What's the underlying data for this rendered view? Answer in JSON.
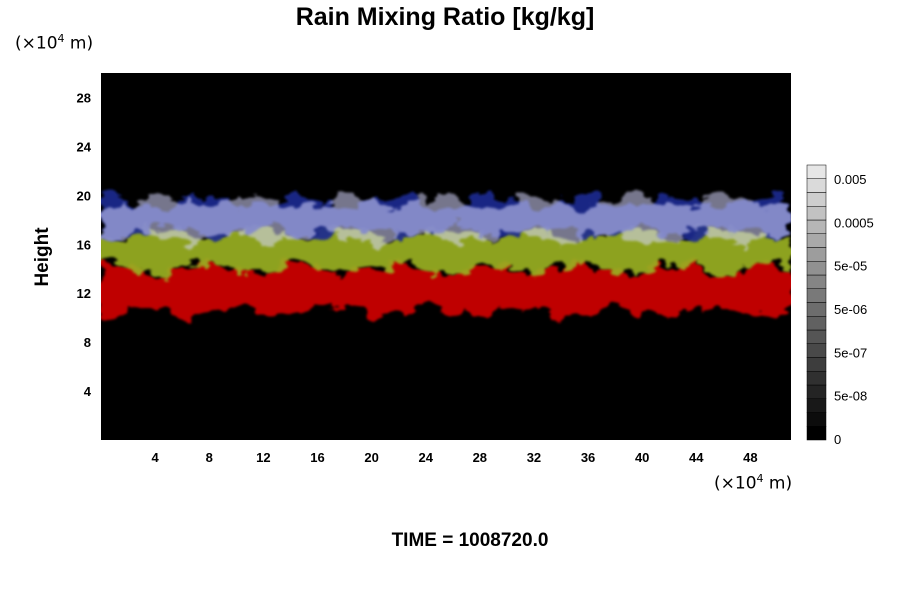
{
  "chart_data": {
    "type": "heatmap",
    "title": "Rain Mixing Ratio [kg/kg]",
    "xlabel": "",
    "ylabel": "Height",
    "x_unit": "(×10⁴ m)",
    "y_unit": "(×10⁴ m)",
    "x_unit_base": "(×10",
    "x_unit_exp": "4",
    "x_unit_tail": " m)",
    "xlim": [
      0,
      51
    ],
    "ylim": [
      0,
      30
    ],
    "x_ticks": [
      4,
      8,
      12,
      16,
      20,
      24,
      28,
      32,
      36,
      40,
      44,
      48
    ],
    "y_ticks": [
      4,
      8,
      12,
      16,
      20,
      24,
      28
    ],
    "colorbar": {
      "tick_labels": [
        "0.005",
        "0.0005",
        "5e-05",
        "5e-06",
        "5e-07",
        "5e-08",
        "0"
      ],
      "levels": 20
    },
    "layers": [
      {
        "name": "red",
        "color": "#d00000",
        "y_range": [
          10.5,
          14
        ]
      },
      {
        "name": "yellow-green",
        "color": "#9ab020",
        "y_range": [
          14,
          17
        ]
      },
      {
        "name": "blue",
        "color": "#1a2a90",
        "y_range": [
          17,
          19.5
        ]
      },
      {
        "name": "white",
        "color": "#d8d8ff",
        "y_range": [
          16.5,
          19.5
        ]
      }
    ],
    "background_color": "#000000"
  },
  "footer": {
    "time": "TIME = 1008720.0"
  }
}
